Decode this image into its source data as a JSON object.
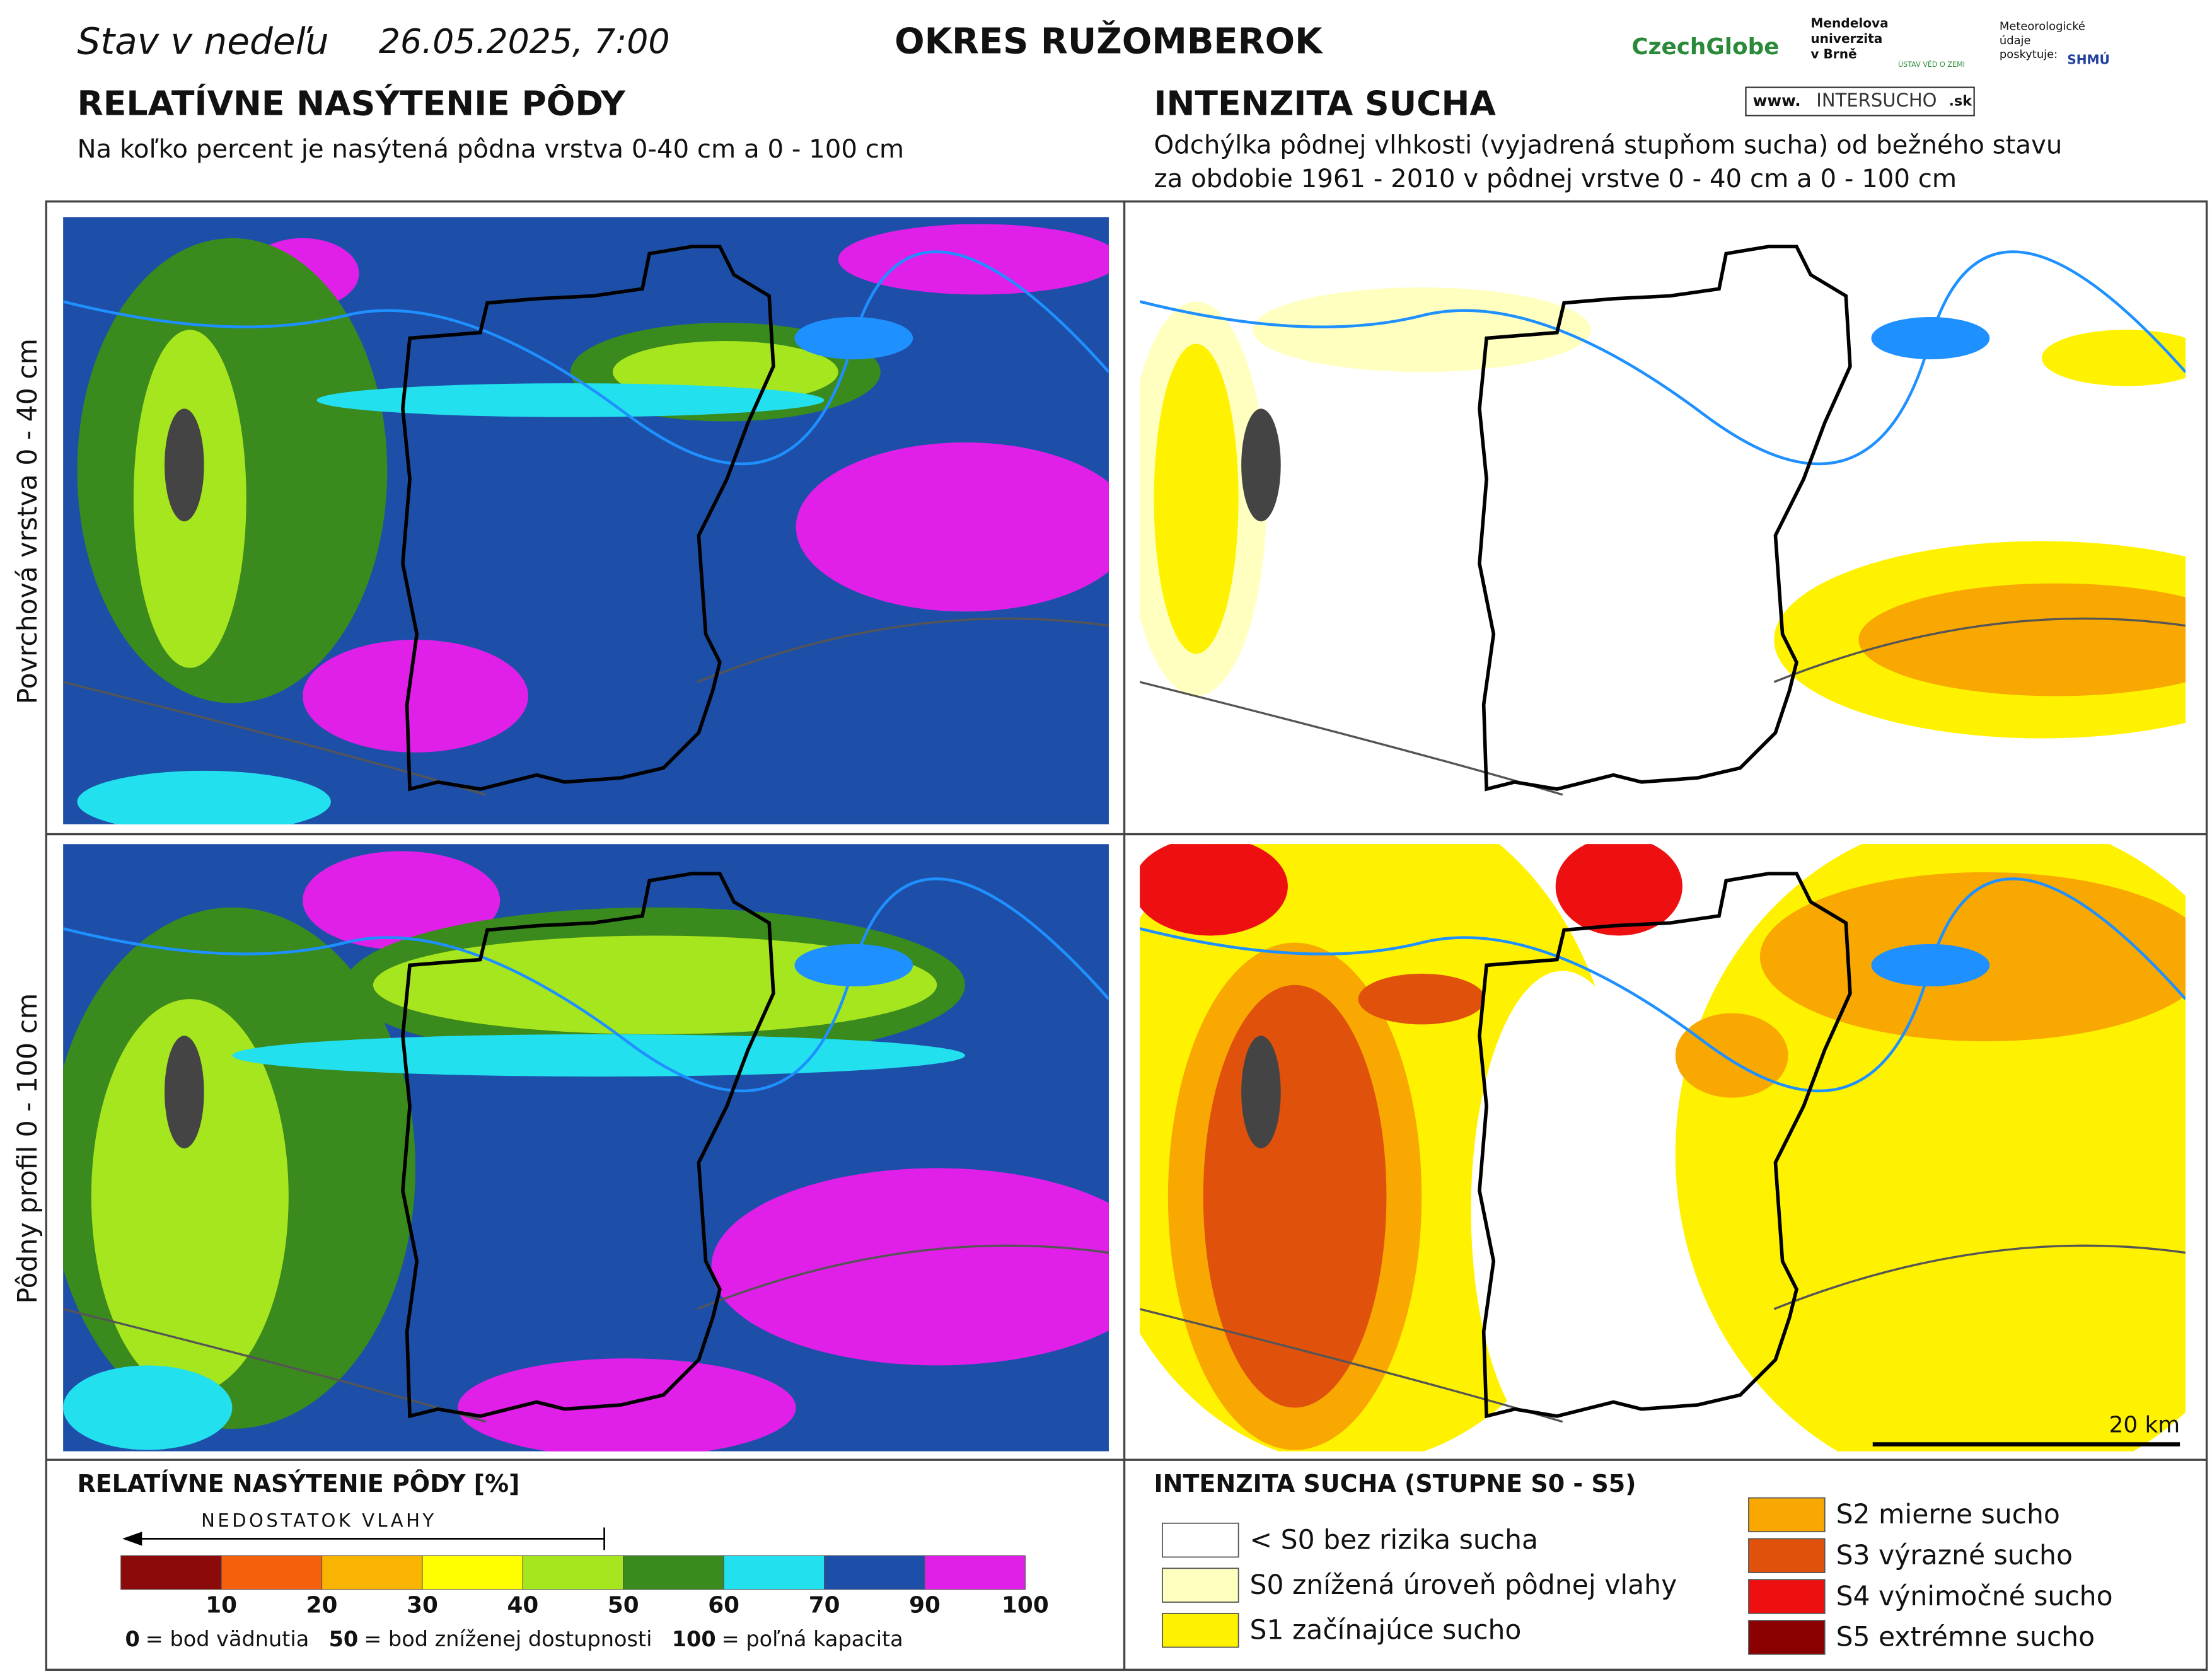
{
  "header": {
    "prefix": "Stav v nedeľu",
    "date": "26.05.2025, 7:00",
    "district": "OKRES  RUŽOMBEROK"
  },
  "logos": {
    "czechglobe": "CzechGlobe",
    "mendelu": [
      "Mendelova",
      "univerzita",
      "v Brně"
    ],
    "ustav": "ÚSTAV VĚD O ZEMI",
    "meteo": [
      "Meteorologické",
      "údaje",
      "poskytuje:"
    ],
    "shmu": "SHMÚ",
    "web": [
      "www.",
      "INTERSUCHO",
      ".sk"
    ]
  },
  "left": {
    "title": "RELATÍVNE NASÝTENIE PÔDY",
    "subtitle": "Na koľko percent je nasýtená pôdna vrstva 0-40 cm a 0 - 100 cm"
  },
  "right": {
    "title": "INTENZITA SUCHA",
    "subtitle": [
      "Odchýlka pôdnej vlhkosti (vyjadrená stupňom sucha) od bežného stavu",
      "za obdobie 1961 - 2010 v pôdnej vrstve 0 - 40 cm a 0 - 100 cm"
    ]
  },
  "row_labels": [
    "Povrchová vrstva 0 - 40 cm",
    "Pôdny profil 0 - 100 cm"
  ],
  "scale_bar": "20 km",
  "legend_saturation": {
    "title": "RELATÍVNE NASÝTENIE PÔDY [%]",
    "arrow": "NEDOSTATOK VLAHY",
    "colors": [
      "#8b0a0a",
      "#f4600c",
      "#f8b400",
      "#ffff00",
      "#a6e61e",
      "#3a8a1e",
      "#22e0ee",
      "#1d4fa8",
      "#e020e8"
    ],
    "ticks": [
      10,
      20,
      30,
      40,
      50,
      60,
      70,
      90,
      100
    ],
    "notes": [
      {
        "value": 0,
        "text": "= bod vädnutia"
      },
      {
        "value": 50,
        "text": "= bod zníženej dostupnosti"
      },
      {
        "value": 100,
        "text": "= poľná kapacita"
      }
    ]
  },
  "legend_drought": {
    "title": "INTENZITA SUCHA (STUPNE S0 - S5)",
    "items": [
      {
        "color": "#ffffff",
        "label": "< S0 bez rizika sucha"
      },
      {
        "color": "#ffffc0",
        "label": "S0 znížená úroveň pôdnej vlahy"
      },
      {
        "color": "#fff200",
        "label": "S1 začínajúce sucho"
      },
      {
        "color": "#f8a800",
        "label": "S2 mierne sucho"
      },
      {
        "color": "#e0520c",
        "label": "S3 výrazné sucho"
      },
      {
        "color": "#ee1010",
        "label": "S4 výnimočné sucho"
      },
      {
        "color": "#8b0000",
        "label": "S5 extrémne sucho"
      }
    ]
  }
}
